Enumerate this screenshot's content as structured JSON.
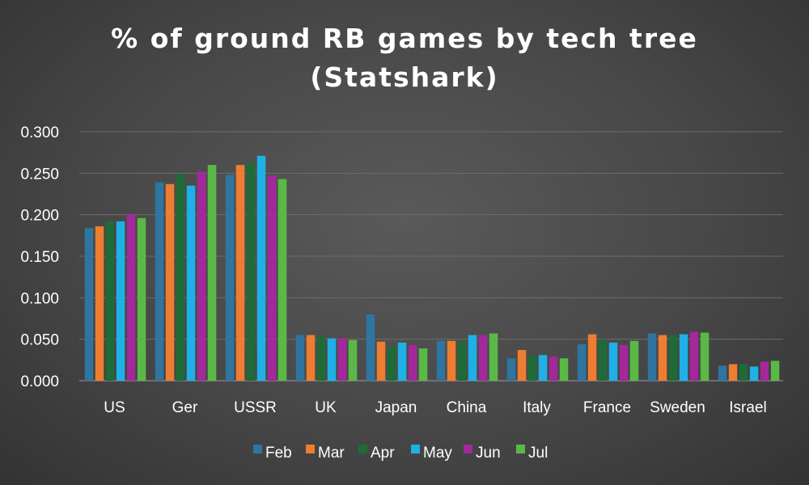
{
  "chart_data": {
    "type": "bar",
    "title_lines": [
      "% of ground RB games by tech tree",
      "(Statshark)"
    ],
    "xlabel": "",
    "ylabel": "",
    "ylim": [
      0,
      0.3
    ],
    "yticks": [
      "0.000",
      "0.050",
      "0.100",
      "0.150",
      "0.200",
      "0.250",
      "0.300"
    ],
    "grid": true,
    "legend_position": "bottom",
    "categories": [
      "US",
      "Ger",
      "USSR",
      "UK",
      "Japan",
      "China",
      "Italy",
      "France",
      "Sweden",
      "Israel"
    ],
    "series": [
      {
        "name": "Feb",
        "color": "#2e75a0",
        "values": [
          0.184,
          0.239,
          0.248,
          0.055,
          0.08,
          0.048,
          0.027,
          0.044,
          0.057,
          0.018
        ]
      },
      {
        "name": "Mar",
        "color": "#ed7d31",
        "values": [
          0.186,
          0.237,
          0.26,
          0.055,
          0.047,
          0.048,
          0.037,
          0.056,
          0.055,
          0.02
        ]
      },
      {
        "name": "Apr",
        "color": "#1f6b38",
        "values": [
          0.192,
          0.249,
          0.263,
          0.053,
          0.041,
          0.047,
          0.03,
          0.05,
          0.055,
          0.02
        ]
      },
      {
        "name": "May",
        "color": "#1fb0e8",
        "values": [
          0.192,
          0.235,
          0.271,
          0.051,
          0.046,
          0.055,
          0.031,
          0.046,
          0.056,
          0.017
        ]
      },
      {
        "name": "Jun",
        "color": "#a3289c",
        "values": [
          0.2,
          0.252,
          0.247,
          0.051,
          0.043,
          0.055,
          0.029,
          0.043,
          0.059,
          0.023
        ]
      },
      {
        "name": "Jul",
        "color": "#5ab946",
        "values": [
          0.196,
          0.26,
          0.243,
          0.049,
          0.039,
          0.057,
          0.027,
          0.048,
          0.058,
          0.024
        ]
      }
    ]
  }
}
